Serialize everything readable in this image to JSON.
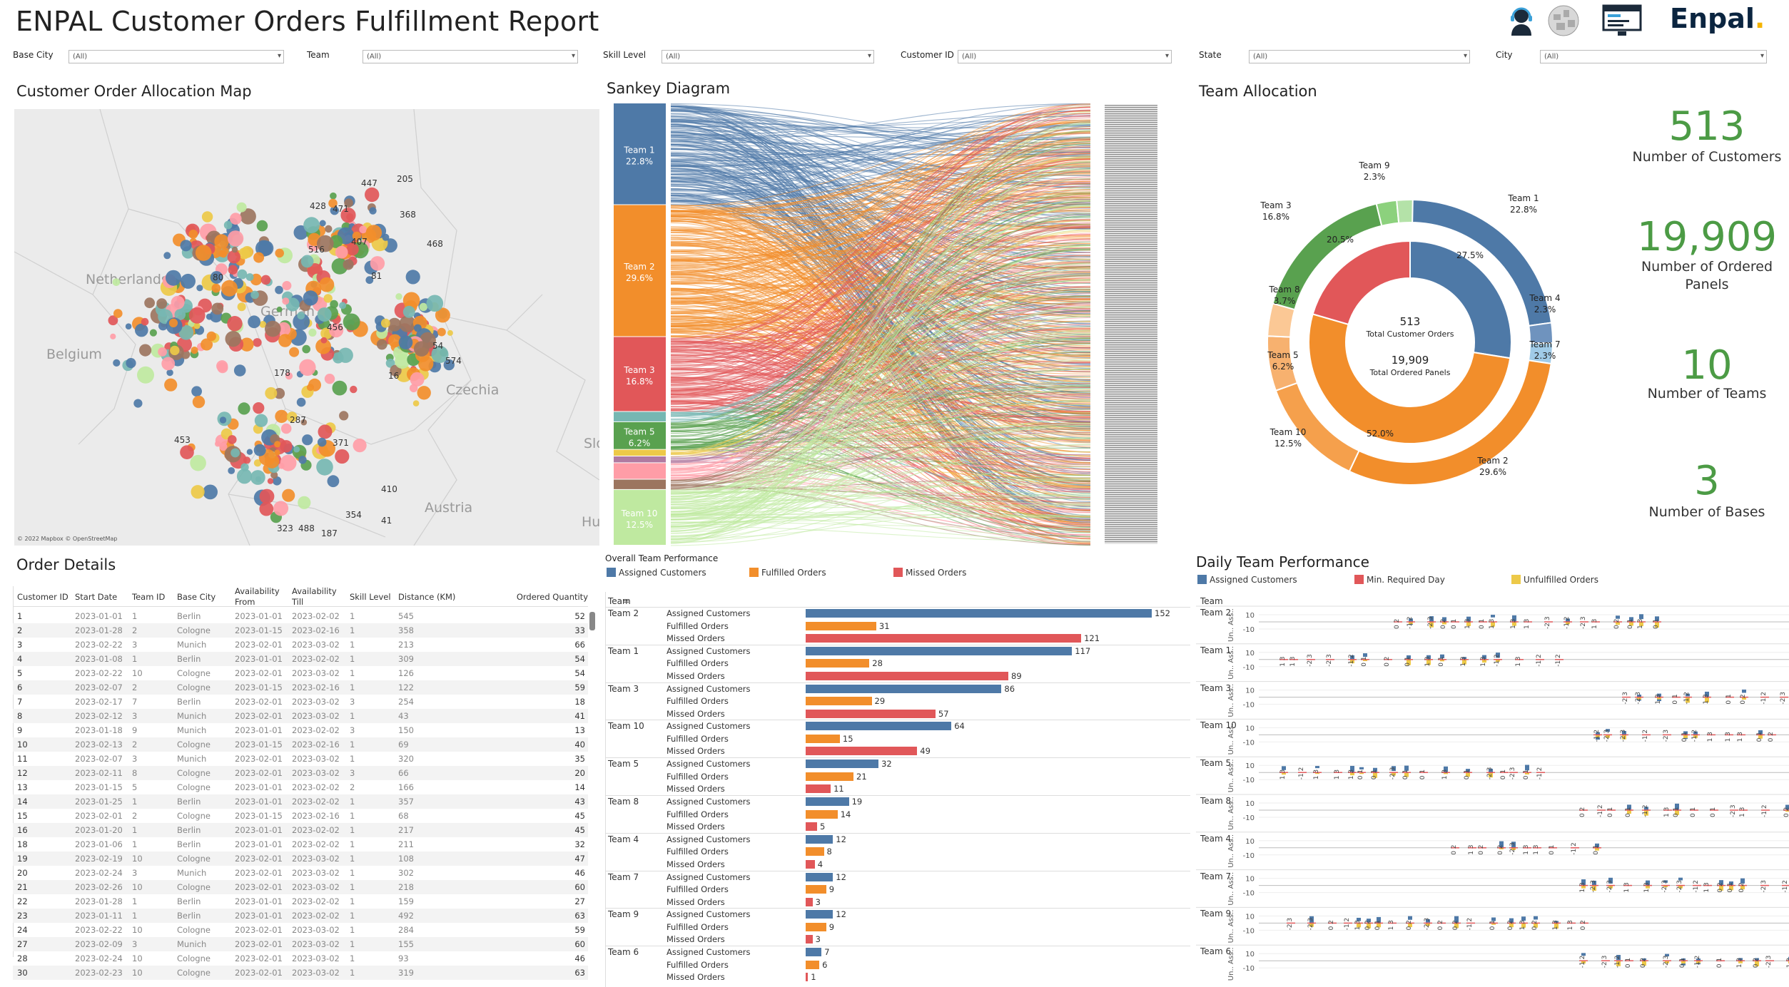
{
  "header": {
    "title": "ENPAL Customer Orders Fulfillment Report",
    "brand": "Enpal"
  },
  "filters": [
    {
      "label": "Base City",
      "value": "(All)"
    },
    {
      "label": "Team",
      "value": "(All)"
    },
    {
      "label": "Skill Level",
      "value": "(All)"
    },
    {
      "label": "Customer ID",
      "value": "(All)"
    },
    {
      "label": "State",
      "value": "(All)"
    },
    {
      "label": "City",
      "value": "(All)"
    }
  ],
  "map": {
    "title": "Customer Order Allocation Map",
    "attribution": "© 2022 Mapbox © OpenStreetMap",
    "countries": [
      "Netherlands",
      "Belgium",
      "German",
      "Czechia",
      "Austria",
      "Hu",
      "Slo"
    ],
    "labels": [
      "447",
      "205",
      "428",
      "471",
      "368",
      "468",
      "516",
      "407",
      "80",
      "81",
      "456",
      "54",
      "574",
      "16",
      "178",
      "287",
      "453",
      "371",
      "410",
      "323",
      "488",
      "187",
      "354",
      "41"
    ]
  },
  "sankey": {
    "title": "Sankey Diagram",
    "nodes": [
      {
        "label": "Team 1",
        "pct": "22.8%",
        "color": "#4e79a7",
        "share": 22.8
      },
      {
        "label": "Team 2",
        "pct": "29.6%",
        "color": "#f28e2b",
        "share": 29.6
      },
      {
        "label": "Team 3",
        "pct": "16.8%",
        "color": "#e15759",
        "share": 16.8
      },
      {
        "label": "",
        "pct": "",
        "color": "#76b7b2",
        "share": 2.3
      },
      {
        "label": "Team 5",
        "pct": "6.2%",
        "color": "#59a14f",
        "share": 6.2
      },
      {
        "label": "",
        "pct": "",
        "color": "#edc948",
        "share": 1.5
      },
      {
        "label": "",
        "pct": "",
        "color": "#b07aa1",
        "share": 1.5
      },
      {
        "label": "",
        "pct": "",
        "color": "#ff9da7",
        "share": 3.7
      },
      {
        "label": "",
        "pct": "",
        "color": "#9c755f",
        "share": 2.3
      },
      {
        "label": "Team 10",
        "pct": "12.5%",
        "color": "#bfe9a0",
        "share": 12.5
      }
    ]
  },
  "team_allocation": {
    "title": "Team Allocation",
    "center": {
      "orders": "513",
      "orders_label": "Total Customer Orders",
      "panels": "19,909",
      "panels_label": "Total Ordered Panels"
    },
    "outer_labels": [
      {
        "name": "Team 1",
        "pct": "22.8%"
      },
      {
        "name": "Team 4",
        "pct": "2.3%"
      },
      {
        "name": "Team 7",
        "pct": "2.3%"
      },
      {
        "name": "Team 2",
        "pct": "29.6%"
      },
      {
        "name": "Team 10",
        "pct": "12.5%"
      },
      {
        "name": "Team 5",
        "pct": "6.2%"
      },
      {
        "name": "Team 8",
        "pct": "3.7%"
      },
      {
        "name": "Team 3",
        "pct": "16.8%"
      },
      {
        "name": "Team 9",
        "pct": "2.3%"
      }
    ],
    "inner_labels": [
      "27.5%",
      "52.0%",
      "20.5%"
    ]
  },
  "kpis": [
    {
      "value": "513",
      "label": "Number of Customers"
    },
    {
      "value": "19,909",
      "label": "Number of Ordered Panels"
    },
    {
      "value": "10",
      "label": "Number of Teams"
    },
    {
      "value": "3",
      "label": "Number of Bases"
    }
  ],
  "order_details": {
    "title": "Order Details",
    "headers": [
      "Customer ID",
      "Start Date",
      "Team ID",
      "Base City",
      "Availability From",
      "Availability Till",
      "Skill Level",
      "Distance (KM)",
      "Ordered Quantity"
    ],
    "rows": [
      [
        "1",
        "2023-01-01",
        "1",
        "Berlin",
        "2023-01-01",
        "2023-02-02",
        "1",
        "545",
        "52"
      ],
      [
        "2",
        "2023-01-28",
        "2",
        "Cologne",
        "2023-01-15",
        "2023-02-16",
        "1",
        "358",
        "33"
      ],
      [
        "3",
        "2023-02-22",
        "3",
        "Munich",
        "2023-02-01",
        "2023-03-02",
        "1",
        "213",
        "66"
      ],
      [
        "4",
        "2023-01-08",
        "1",
        "Berlin",
        "2023-01-01",
        "2023-02-02",
        "1",
        "309",
        "54"
      ],
      [
        "5",
        "2023-02-22",
        "10",
        "Cologne",
        "2023-02-01",
        "2023-03-02",
        "1",
        "126",
        "54"
      ],
      [
        "6",
        "2023-02-07",
        "2",
        "Cologne",
        "2023-01-15",
        "2023-02-16",
        "1",
        "122",
        "59"
      ],
      [
        "7",
        "2023-02-17",
        "7",
        "Berlin",
        "2023-02-01",
        "2023-03-02",
        "3",
        "254",
        "18"
      ],
      [
        "8",
        "2023-02-12",
        "3",
        "Munich",
        "2023-02-01",
        "2023-03-02",
        "1",
        "43",
        "41"
      ],
      [
        "9",
        "2023-01-18",
        "9",
        "Munich",
        "2023-01-01",
        "2023-02-02",
        "3",
        "150",
        "13"
      ],
      [
        "10",
        "2023-02-13",
        "2",
        "Cologne",
        "2023-01-15",
        "2023-02-16",
        "1",
        "69",
        "40"
      ],
      [
        "11",
        "2023-02-07",
        "3",
        "Munich",
        "2023-02-01",
        "2023-03-02",
        "1",
        "320",
        "35"
      ],
      [
        "12",
        "2023-02-11",
        "8",
        "Cologne",
        "2023-02-01",
        "2023-03-02",
        "3",
        "66",
        "20"
      ],
      [
        "13",
        "2023-01-15",
        "5",
        "Cologne",
        "2023-01-01",
        "2023-02-02",
        "2",
        "166",
        "14"
      ],
      [
        "14",
        "2023-01-25",
        "1",
        "Berlin",
        "2023-01-01",
        "2023-02-02",
        "1",
        "357",
        "43"
      ],
      [
        "15",
        "2023-02-01",
        "2",
        "Cologne",
        "2023-01-15",
        "2023-02-16",
        "1",
        "68",
        "45"
      ],
      [
        "16",
        "2023-01-20",
        "1",
        "Berlin",
        "2023-01-01",
        "2023-02-02",
        "1",
        "217",
        "45"
      ],
      [
        "18",
        "2023-01-06",
        "1",
        "Berlin",
        "2023-01-01",
        "2023-02-02",
        "1",
        "211",
        "32"
      ],
      [
        "19",
        "2023-02-19",
        "10",
        "Cologne",
        "2023-02-01",
        "2023-03-02",
        "1",
        "108",
        "47"
      ],
      [
        "20",
        "2023-02-24",
        "3",
        "Munich",
        "2023-02-01",
        "2023-03-02",
        "1",
        "302",
        "46"
      ],
      [
        "21",
        "2023-02-26",
        "10",
        "Cologne",
        "2023-02-01",
        "2023-03-02",
        "1",
        "218",
        "60"
      ],
      [
        "22",
        "2023-01-28",
        "1",
        "Berlin",
        "2023-01-01",
        "2023-02-02",
        "1",
        "159",
        "27"
      ],
      [
        "23",
        "2023-01-11",
        "1",
        "Berlin",
        "2023-01-01",
        "2023-02-02",
        "1",
        "492",
        "63"
      ],
      [
        "24",
        "2023-02-22",
        "10",
        "Cologne",
        "2023-02-01",
        "2023-03-02",
        "1",
        "284",
        "59"
      ],
      [
        "27",
        "2023-02-09",
        "3",
        "Munich",
        "2023-02-01",
        "2023-03-02",
        "1",
        "155",
        "60"
      ],
      [
        "28",
        "2023-02-24",
        "10",
        "Cologne",
        "2023-02-01",
        "2023-03-02",
        "1",
        "93",
        "46"
      ],
      [
        "30",
        "2023-02-23",
        "10",
        "Cologne",
        "2023-02-01",
        "2023-03-02",
        "1",
        "319",
        "63"
      ]
    ]
  },
  "overall_perf": {
    "title": "Overall Team Performance",
    "legend": [
      {
        "label": "Assigned Customers",
        "color": "#4e79a7"
      },
      {
        "label": "Fulfilled Orders",
        "color": "#f28e2b"
      },
      {
        "label": "Missed Orders",
        "color": "#e15759"
      }
    ],
    "team_header": "Team",
    "metrics": [
      "Assigned Customers",
      "Fulfilled Orders",
      "Missed Orders"
    ],
    "teams": [
      {
        "name": "Team 2",
        "values": [
          152,
          31,
          121
        ]
      },
      {
        "name": "Team 1",
        "values": [
          117,
          28,
          89
        ]
      },
      {
        "name": "Team 3",
        "values": [
          86,
          29,
          57
        ]
      },
      {
        "name": "Team 10",
        "values": [
          64,
          15,
          49
        ]
      },
      {
        "name": "Team 5",
        "values": [
          32,
          21,
          11
        ]
      },
      {
        "name": "Team 8",
        "values": [
          19,
          14,
          5
        ]
      },
      {
        "name": "Team 4",
        "values": [
          12,
          8,
          4
        ]
      },
      {
        "name": "Team 7",
        "values": [
          12,
          9,
          3
        ]
      },
      {
        "name": "Team 9",
        "values": [
          12,
          9,
          3
        ]
      },
      {
        "name": "Team 6",
        "values": [
          7,
          6,
          1
        ]
      }
    ]
  },
  "daily_perf": {
    "title": "Daily Team Performance",
    "legend": [
      {
        "label": "Assigned Customers",
        "color": "#4e79a7"
      },
      {
        "label": "Min. Required Day",
        "color": "#e15759"
      },
      {
        "label": "Unfulfilled Orders",
        "color": "#edc948"
      }
    ],
    "team_header": "Team",
    "axis_label": "Un.. Ass..",
    "ticks": [
      "10",
      "-10"
    ],
    "teams": [
      "Team 2",
      "Team 1",
      "Team 3",
      "Team 10",
      "Team 5",
      "Team 8",
      "Team 4",
      "Team 7",
      "Team 9",
      "Team 6"
    ]
  }
}
